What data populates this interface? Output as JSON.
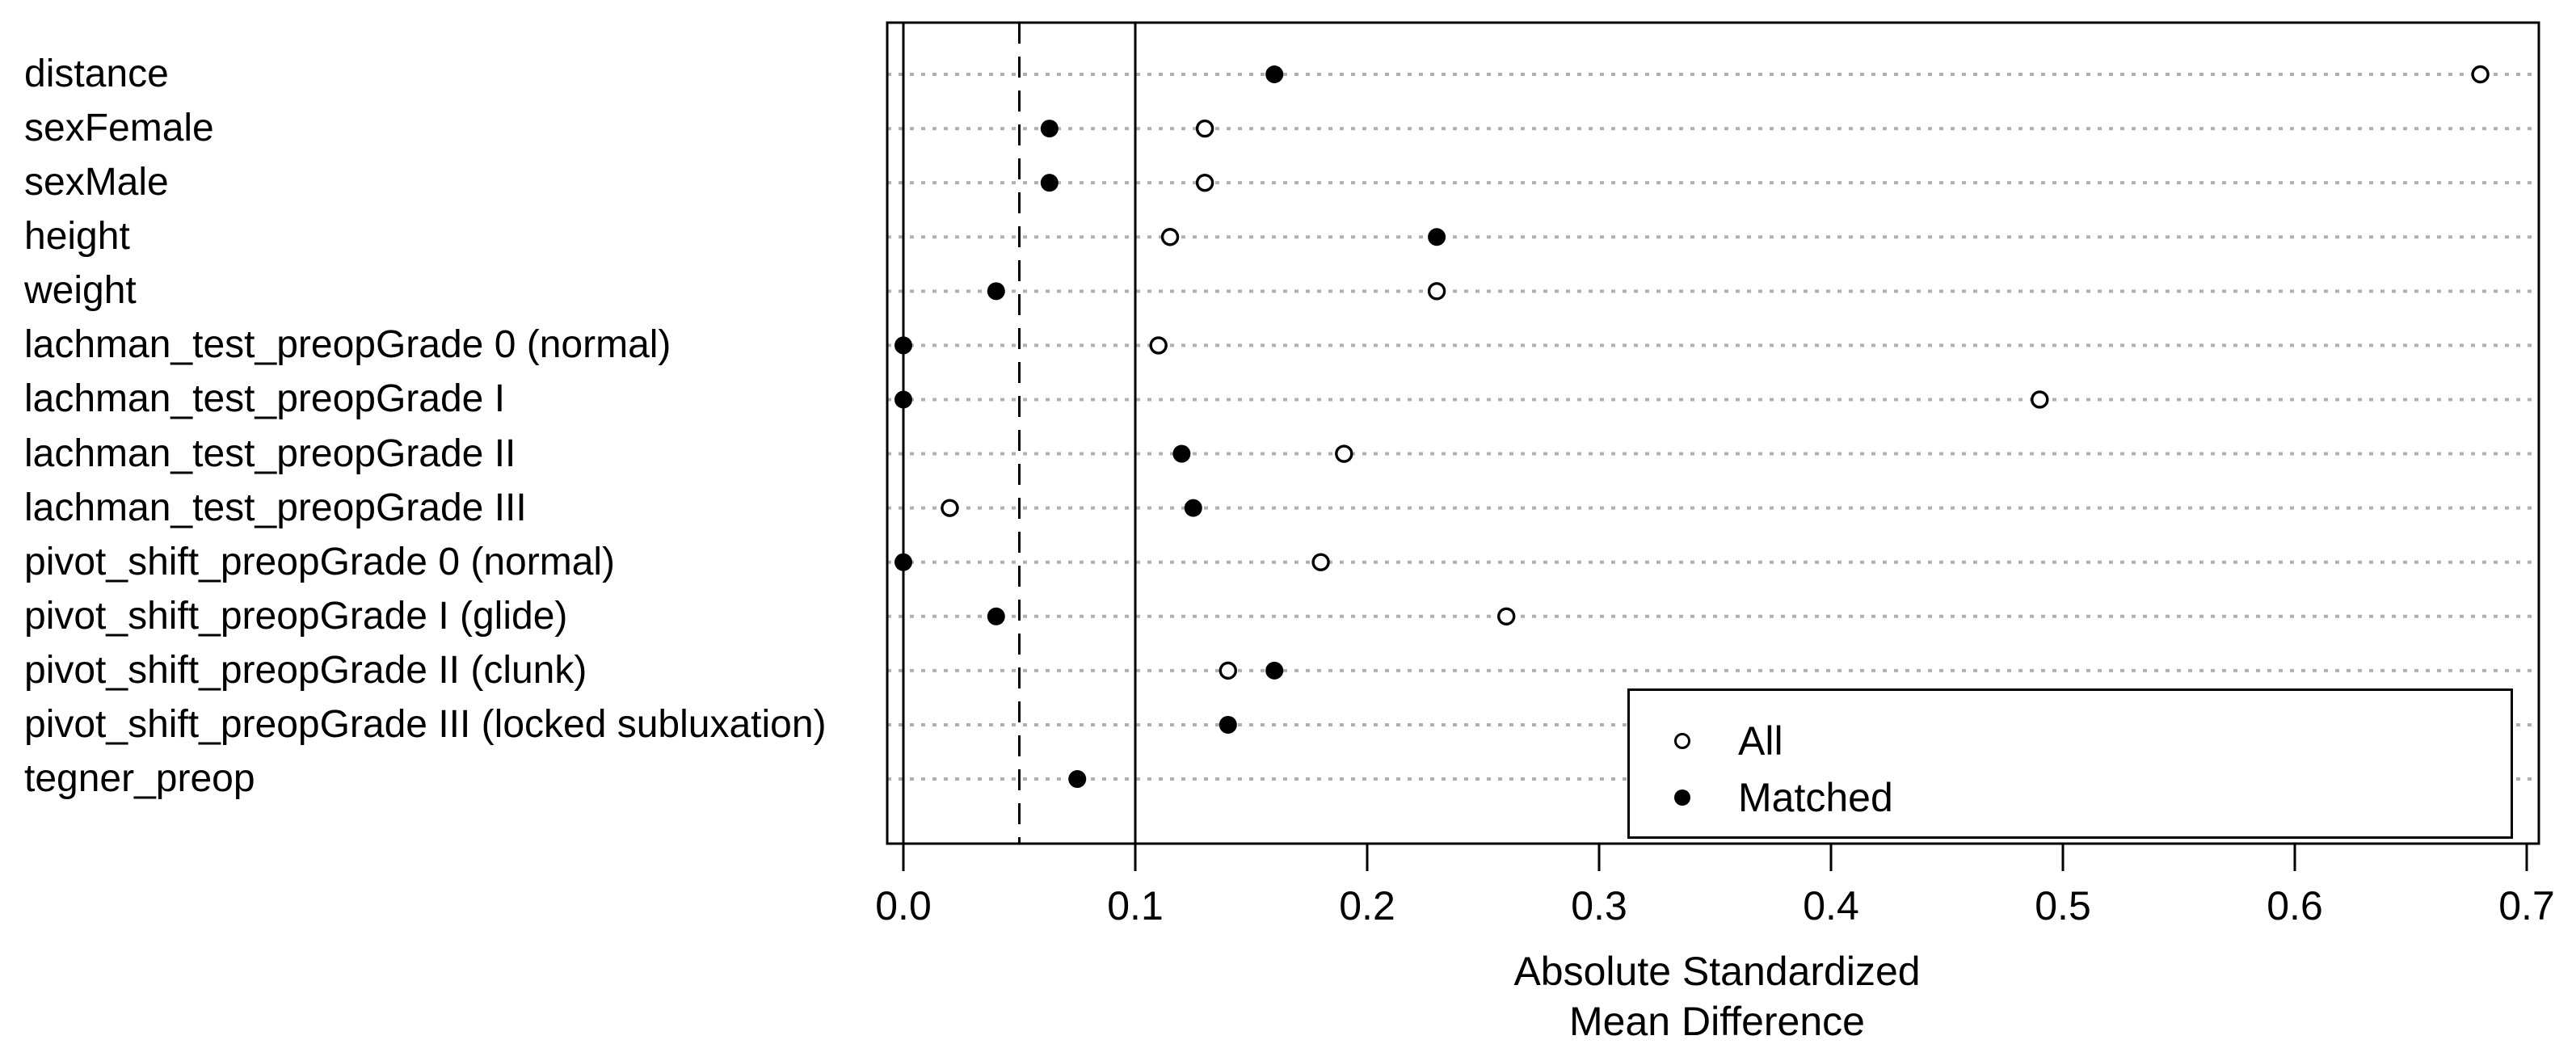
{
  "colors": {
    "foreground": "#000000",
    "background": "#ffffff",
    "gridline": "#b0b0b0"
  },
  "chart_data": {
    "type": "scatter",
    "title": "",
    "xlabel_lines": [
      "Absolute Standardized",
      "Mean Difference"
    ],
    "ylabel": "",
    "xlim": [
      -0.007,
      0.706
    ],
    "x_ticks": [
      0.0,
      0.1,
      0.2,
      0.3,
      0.4,
      0.5,
      0.6,
      0.7
    ],
    "x_tick_labels": [
      "0.0",
      "0.1",
      "0.2",
      "0.3",
      "0.4",
      "0.5",
      "0.6",
      "0.7"
    ],
    "reference_lines": {
      "solid": [
        0.0,
        0.1
      ],
      "dashed": [
        0.05
      ]
    },
    "grid": "horizontal dotted gridline per category row",
    "legend": {
      "position": "bottom-right",
      "entries": [
        {
          "label": "All",
          "marker": "open-circle"
        },
        {
          "label": "Matched",
          "marker": "filled-circle"
        }
      ]
    },
    "categories": [
      "distance",
      "sexFemale",
      "sexMale",
      "height",
      "weight",
      "lachman_test_preopGrade 0 (normal)",
      "lachman_test_preopGrade I",
      "lachman_test_preopGrade II",
      "lachman_test_preopGrade III",
      "pivot_shift_preopGrade 0 (normal)",
      "pivot_shift_preopGrade I (glide)",
      "pivot_shift_preopGrade II (clunk)",
      "pivot_shift_preopGrade III (locked subluxation)",
      "tegner_preop"
    ],
    "series": [
      {
        "name": "All",
        "marker": "open-circle",
        "values": [
          0.68,
          0.13,
          0.13,
          0.115,
          0.23,
          0.11,
          0.49,
          0.19,
          0.02,
          0.18,
          0.26,
          0.14,
          null,
          null
        ]
      },
      {
        "name": "Matched",
        "marker": "filled-circle",
        "values": [
          0.16,
          0.063,
          0.063,
          0.23,
          0.04,
          0.0,
          0.0,
          0.12,
          0.125,
          0.0,
          0.04,
          0.16,
          0.14,
          0.075
        ]
      }
    ],
    "notes": "Open 'All' markers for the last two rows are not visible; the opaque white legend box covers that plot region."
  }
}
